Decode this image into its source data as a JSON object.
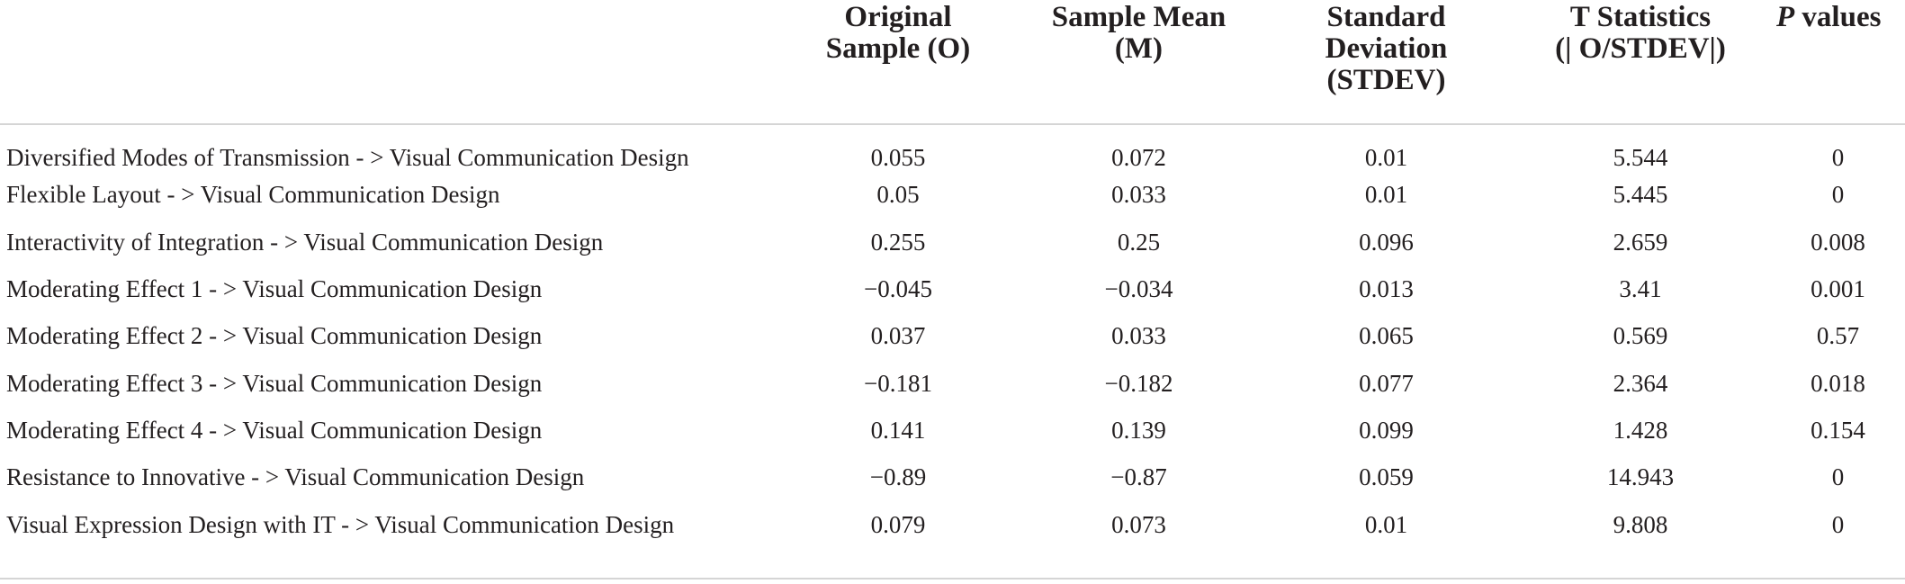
{
  "table": {
    "headers": {
      "path": "",
      "original_line1": "Original",
      "original_line2": "Sample (O)",
      "mean_line1": "Sample Mean",
      "mean_line2": "(M)",
      "sd_line1": "Standard",
      "sd_line2": "Deviation",
      "sd_line3": "(STDEV)",
      "t_line1": "T Statistics",
      "t_line2": "(| O/STDEV|)",
      "p_italic": "P",
      "p_rest": " values"
    },
    "rows": [
      {
        "path": "Diversified Modes of Transmission - > Visual Communication Design",
        "original": "0.055",
        "mean": "0.072",
        "stdev": "0.01",
        "t": "5.544",
        "p": "0"
      },
      {
        "path": "Flexible Layout - > Visual Communication Design",
        "original": "0.05",
        "mean": "0.033",
        "stdev": "0.01",
        "t": "5.445",
        "p": "0"
      },
      {
        "path": "Interactivity of Integration - > Visual Communication Design",
        "original": "0.255",
        "mean": "0.25",
        "stdev": "0.096",
        "t": "2.659",
        "p": "0.008"
      },
      {
        "path": "Moderating Effect 1 - > Visual Communication Design",
        "original": "−0.045",
        "mean": "−0.034",
        "stdev": "0.013",
        "t": "3.41",
        "p": "0.001"
      },
      {
        "path": "Moderating Effect 2 - > Visual Communication Design",
        "original": "0.037",
        "mean": "0.033",
        "stdev": "0.065",
        "t": "0.569",
        "p": "0.57"
      },
      {
        "path": "Moderating Effect 3 - > Visual Communication Design",
        "original": "−0.181",
        "mean": "−0.182",
        "stdev": "0.077",
        "t": "2.364",
        "p": "0.018"
      },
      {
        "path": "Moderating Effect 4 - > Visual Communication Design",
        "original": "0.141",
        "mean": "0.139",
        "stdev": "0.099",
        "t": "1.428",
        "p": "0.154"
      },
      {
        "path": "Resistance to Innovative - > Visual Communication Design",
        "original": "−0.89",
        "mean": "−0.87",
        "stdev": "0.059",
        "t": "14.943",
        "p": "0"
      },
      {
        "path": "Visual Expression Design with IT - > Visual Communication Design",
        "original": "0.079",
        "mean": "0.073",
        "stdev": "0.01",
        "t": "9.808",
        "p": "0"
      }
    ]
  }
}
